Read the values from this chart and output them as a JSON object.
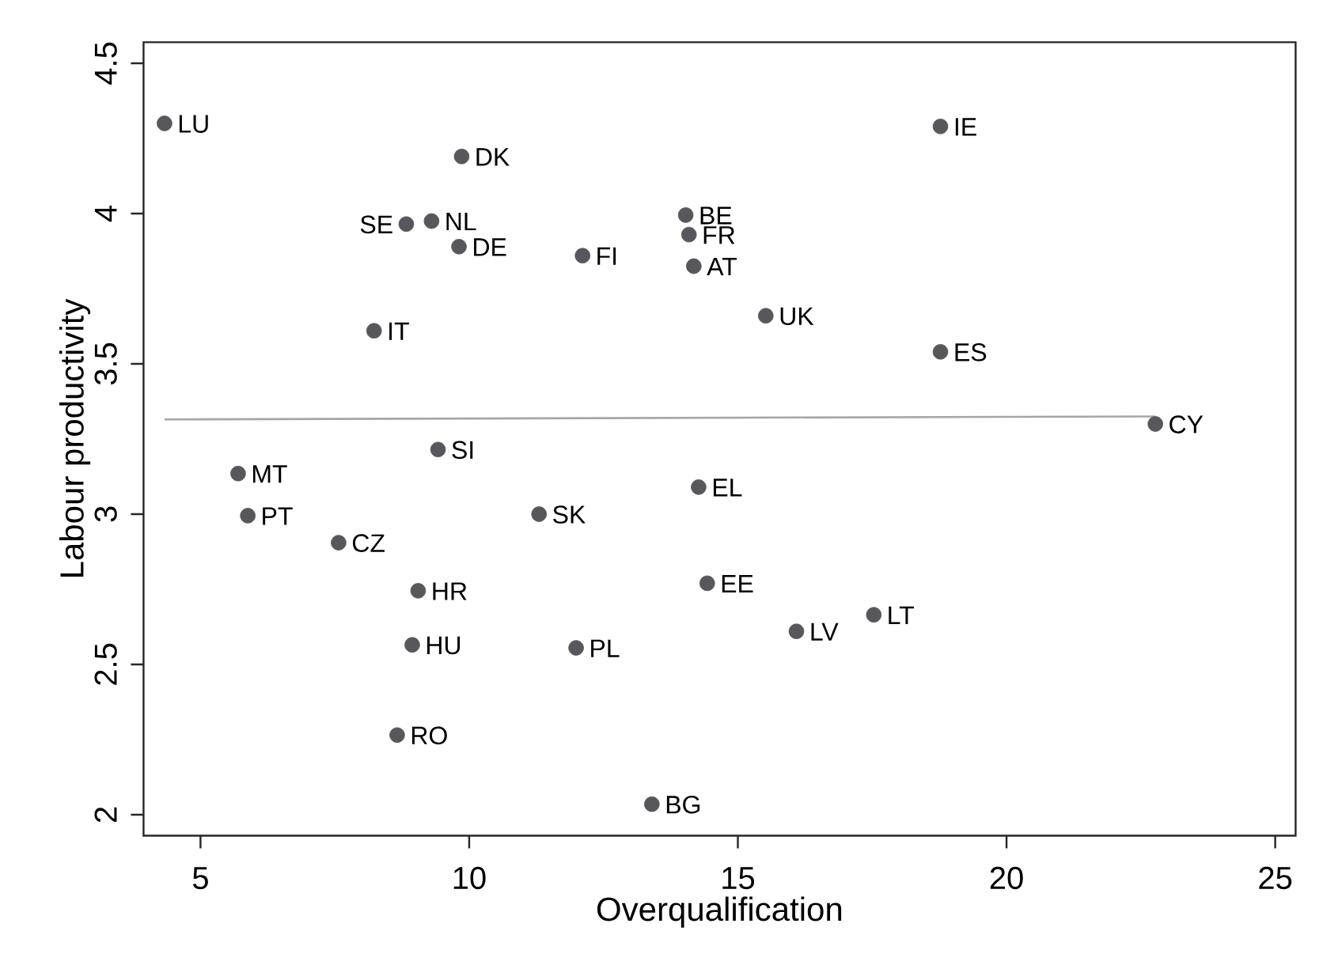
{
  "chart_data": {
    "type": "scatter",
    "xlabel": "Overqualification",
    "ylabel": "Labour productivity",
    "xlim": [
      3.94,
      25.38
    ],
    "ylim": [
      1.93,
      4.57
    ],
    "xticks": [
      5,
      10,
      15,
      20,
      25
    ],
    "yticks": [
      2,
      2.5,
      3,
      3.5,
      4,
      4.5
    ],
    "marker": "circle",
    "series": [
      {
        "color": "#58585c",
        "x": [
          4.33,
          9.86,
          8.83,
          9.3,
          9.81,
          12.11,
          8.23,
          9.42,
          5.7,
          5.88,
          7.57,
          11.3,
          9.05,
          8.94,
          11.99,
          8.66,
          13.4,
          14.03,
          14.09,
          14.18,
          15.52,
          18.77,
          18.77,
          22.77,
          14.27,
          14.43,
          16.09,
          17.53
        ],
        "values": [
          4.3,
          4.19,
          3.965,
          3.975,
          3.89,
          3.86,
          3.61,
          3.215,
          3.135,
          2.995,
          2.905,
          3.0,
          2.745,
          2.565,
          2.555,
          2.265,
          2.035,
          3.995,
          3.93,
          3.825,
          3.66,
          4.29,
          3.54,
          3.3,
          3.09,
          2.77,
          2.61,
          2.665
        ],
        "value_labels": [
          "LU",
          "DK",
          "SE",
          "NL",
          "DE",
          "FI",
          "IT",
          "SI",
          "MT",
          "PT",
          "CZ",
          "SK",
          "HR",
          "HU",
          "PL",
          "RO",
          "BG",
          "BE",
          "FR",
          "AT",
          "UK",
          "IE",
          "ES",
          "CY",
          "EL",
          "EE",
          "LV",
          "LT"
        ]
      },
      {
        "type": "line",
        "color": "#a6a6a6",
        "marker": "none",
        "x": [
          4.33,
          22.77
        ],
        "values": [
          3.315,
          3.325
        ]
      }
    ]
  }
}
